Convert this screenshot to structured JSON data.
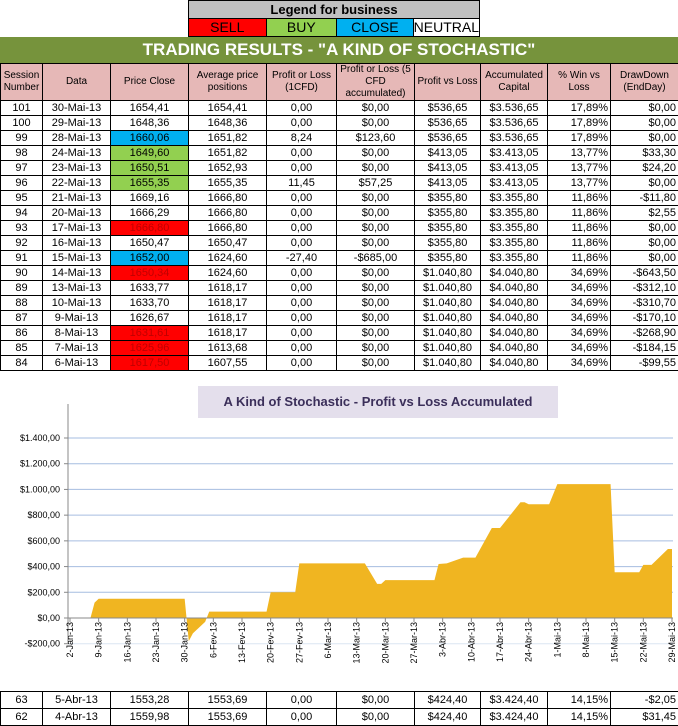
{
  "legend": {
    "title": "Legend for business",
    "items": [
      {
        "label": "SELL",
        "color": "#ff0000"
      },
      {
        "label": "BUY",
        "color": "#92d050"
      },
      {
        "label": "CLOSE",
        "color": "#00b0f0"
      },
      {
        "label": "NEUTRAL",
        "color": "#ffffff"
      }
    ]
  },
  "banner": "TRADING RESULTS - \"A KIND OF STOCHASTIC\"",
  "columns": [
    "Session Number",
    "Data",
    "Price Close",
    "Average price positions",
    "Profit or Loss (1CFD)",
    "Profit or Loss (5 CFD accumulated)",
    "Profit vs Loss",
    "Accumulated Capital",
    "% Win vs Loss",
    "DrawDown (EndDay)"
  ],
  "rows": [
    {
      "cells": [
        "101",
        "30-Mai-13",
        "1654,41",
        "1654,41",
        "0,00",
        "$0,00",
        "$536,65",
        "$3.536,65",
        "17,89%",
        "$0,00"
      ],
      "signal": "NEUTRAL"
    },
    {
      "cells": [
        "100",
        "29-Mai-13",
        "1648,36",
        "1648,36",
        "0,00",
        "$0,00",
        "$536,65",
        "$3.536,65",
        "17,89%",
        "$0,00"
      ],
      "signal": "NEUTRAL"
    },
    {
      "cells": [
        "99",
        "28-Mai-13",
        "1660,06",
        "1651,82",
        "8,24",
        "$123,60",
        "$536,65",
        "$3.536,65",
        "17,89%",
        "$0,00"
      ],
      "signal": "CLOSE"
    },
    {
      "cells": [
        "98",
        "24-Mai-13",
        "1649,60",
        "1651,82",
        "0,00",
        "$0,00",
        "$413,05",
        "$3.413,05",
        "13,77%",
        "$33,30"
      ],
      "signal": "BUY"
    },
    {
      "cells": [
        "97",
        "23-Mai-13",
        "1650,51",
        "1652,93",
        "0,00",
        "$0,00",
        "$413,05",
        "$3.413,05",
        "13,77%",
        "$24,20"
      ],
      "signal": "BUY"
    },
    {
      "cells": [
        "96",
        "22-Mai-13",
        "1655,35",
        "1655,35",
        "11,45",
        "$57,25",
        "$413,05",
        "$3.413,05",
        "13,77%",
        "$0,00"
      ],
      "signal": "BUY"
    },
    {
      "cells": [
        "95",
        "21-Mai-13",
        "1669,16",
        "1666,80",
        "0,00",
        "$0,00",
        "$355,80",
        "$3.355,80",
        "11,86%",
        "-$11,80"
      ],
      "signal": "NEUTRAL"
    },
    {
      "cells": [
        "94",
        "20-Mai-13",
        "1666,29",
        "1666,80",
        "0,00",
        "$0,00",
        "$355,80",
        "$3.355,80",
        "11,86%",
        "$2,55"
      ],
      "signal": "NEUTRAL"
    },
    {
      "cells": [
        "93",
        "17-Mai-13",
        "1666,80",
        "1666,80",
        "0,00",
        "$0,00",
        "$355,80",
        "$3.355,80",
        "11,86%",
        "$0,00"
      ],
      "signal": "SELL"
    },
    {
      "cells": [
        "92",
        "16-Mai-13",
        "1650,47",
        "1650,47",
        "0,00",
        "$0,00",
        "$355,80",
        "$3.355,80",
        "11,86%",
        "$0,00"
      ],
      "signal": "NEUTRAL"
    },
    {
      "cells": [
        "91",
        "15-Mai-13",
        "1652,00",
        "1624,60",
        "-27,40",
        "-$685,00",
        "$355,80",
        "$3.355,80",
        "11,86%",
        "$0,00"
      ],
      "signal": "CLOSE"
    },
    {
      "cells": [
        "90",
        "14-Mai-13",
        "1650,34",
        "1624,60",
        "0,00",
        "$0,00",
        "$1.040,80",
        "$4.040,80",
        "34,69%",
        "-$643,50"
      ],
      "signal": "SELL"
    },
    {
      "cells": [
        "89",
        "13-Mai-13",
        "1633,77",
        "1618,17",
        "0,00",
        "$0,00",
        "$1.040,80",
        "$4.040,80",
        "34,69%",
        "-$312,10"
      ],
      "signal": "NEUTRAL"
    },
    {
      "cells": [
        "88",
        "10-Mai-13",
        "1633,70",
        "1618,17",
        "0,00",
        "$0,00",
        "$1.040,80",
        "$4.040,80",
        "34,69%",
        "-$310,70"
      ],
      "signal": "NEUTRAL"
    },
    {
      "cells": [
        "87",
        "9-Mai-13",
        "1626,67",
        "1618,17",
        "0,00",
        "$0,00",
        "$1.040,80",
        "$4.040,80",
        "34,69%",
        "-$170,10"
      ],
      "signal": "NEUTRAL"
    },
    {
      "cells": [
        "86",
        "8-Mai-13",
        "1631,61",
        "1618,17",
        "0,00",
        "$0,00",
        "$1.040,80",
        "$4.040,80",
        "34,69%",
        "-$268,90"
      ],
      "signal": "SELL"
    },
    {
      "cells": [
        "85",
        "7-Mai-13",
        "1625,96",
        "1613,68",
        "0,00",
        "$0,00",
        "$1.040,80",
        "$4.040,80",
        "34,69%",
        "-$184,15"
      ],
      "signal": "SELL"
    },
    {
      "cells": [
        "84",
        "6-Mai-13",
        "1617,50",
        "1607,55",
        "0,00",
        "$0,00",
        "$1.040,80",
        "$4.040,80",
        "34,69%",
        "-$99,55"
      ],
      "signal": "SELL"
    }
  ],
  "bottom_rows": [
    {
      "cells": [
        "63",
        "5-Abr-13",
        "1553,28",
        "1553,69",
        "0,00",
        "$0,00",
        "$424,40",
        "$3.424,40",
        "14,15%",
        "-$2,05"
      ]
    },
    {
      "cells": [
        "62",
        "4-Abr-13",
        "1559,98",
        "1553,69",
        "0,00",
        "$0,00",
        "$424,40",
        "$3.424,40",
        "14,15%",
        "$31,45"
      ]
    }
  ],
  "chart_data": {
    "type": "area",
    "title": "A Kind of Stochastic - Profit vs Loss Accumulated",
    "xlabel": "",
    "ylabel": "",
    "ylim": [
      -200,
      1400
    ],
    "yticks": [
      "-$200,00",
      "$0,00",
      "$200,00",
      "$400,00",
      "$600,00",
      "$800,00",
      "$1.000,00",
      "$1.200,00",
      "$1.400,00"
    ],
    "xticks": [
      "2-Jan-13",
      "9-Jan-13",
      "16-Jan-13",
      "23-Jan-13",
      "30-Jan-13",
      "6-Fev-13",
      "13-Fev-13",
      "20-Fev-13",
      "27-Fev-13",
      "6-Mar-13",
      "13-Mar-13",
      "20-Mar-13",
      "27-Mar-13",
      "3-Abr-13",
      "10-Abr-13",
      "17-Abr-13",
      "24-Abr-13",
      "1-Mai-13",
      "8-Mai-13",
      "15-Mai-13",
      "22-Mai-13",
      "29-Mai-13"
    ],
    "grid": true,
    "color": "#f0b521",
    "x": [
      "7-Jan-13",
      "8-Jan-13",
      "9-Jan-13",
      "30-Jan-13",
      "31-Jan-13",
      "1-Fev-13",
      "4-Fev-13",
      "5-Fev-13",
      "19-Fev-13",
      "20-Fev-13",
      "26-Fev-13",
      "27-Fev-13",
      "15-Mar-13",
      "18-Mar-13",
      "19-Mar-13",
      "20-Mar-13",
      "1-Abr-13",
      "2-Abr-13",
      "4-Abr-13",
      "8-Abr-13",
      "11-Abr-13",
      "15-Abr-13",
      "17-Abr-13",
      "22-Abr-13",
      "23-Abr-13",
      "24-Abr-13",
      "29-Abr-13",
      "1-Mai-13",
      "14-Mai-13",
      "15-Mai-13",
      "21-Mai-13",
      "22-Mai-13",
      "24-Mai-13",
      "28-Mai-13",
      "29-Mai-13"
    ],
    "y": [
      0,
      120,
      150,
      150,
      -180,
      -120,
      -30,
      50,
      50,
      200,
      200,
      425,
      425,
      265,
      265,
      295,
      295,
      420,
      424.4,
      470,
      470,
      700,
      700,
      900,
      900,
      885,
      885,
      1040.8,
      1040.8,
      355.8,
      355.8,
      413.05,
      413.05,
      536.65,
      536.65
    ]
  }
}
